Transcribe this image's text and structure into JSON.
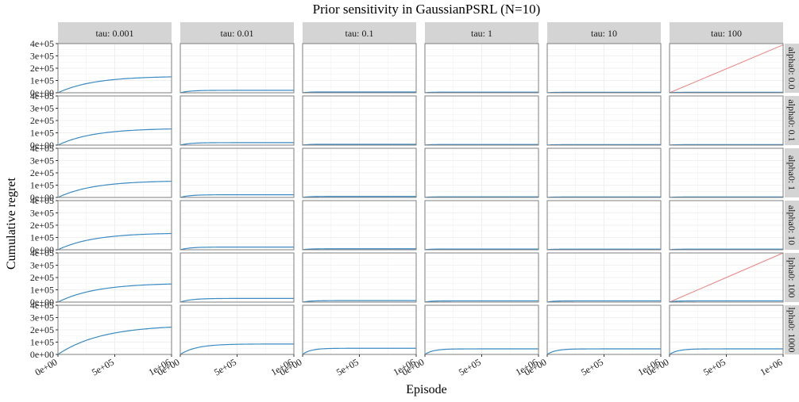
{
  "chart_data": {
    "type": "line",
    "title": "Prior sensitivity in GaussianPSRL (N=10)",
    "xlabel": "Episode",
    "ylabel": "Cumulative regret",
    "xlim": [
      0,
      1000000
    ],
    "ylim": [
      0,
      400000
    ],
    "x_ticks": [
      0,
      500000,
      1000000
    ],
    "x_tick_labels": [
      "0e+00",
      "5e+05",
      "1e+06"
    ],
    "y_ticks": [
      0,
      100000,
      200000,
      300000,
      400000
    ],
    "y_tick_labels": [
      "0e+00",
      "1e+05",
      "2e+05",
      "3e+05",
      "4e+05"
    ],
    "grid": true,
    "col_facets": [
      "tau: 0.001",
      "tau: 0.01",
      "tau: 0.1",
      "tau: 1",
      "tau: 10",
      "tau: 100"
    ],
    "row_facets": [
      "alpha0: 0.0",
      "alpha0: 0.1",
      "alpha0: 1",
      "alpha0: 10",
      "alpha0: 100",
      "alpha0: 1000"
    ],
    "row_facet_labels_visible": [
      "alpha0: 0.0",
      "alpha0: 0.1",
      "alpha0: 1",
      "alpha0: 10",
      "lpha0: 100",
      "lpha0: 1000"
    ],
    "colors": {
      "main": "#3b8bc2",
      "linear": "#f08080",
      "strip": "#d4d4d4",
      "panel_border": "#7f7f7f",
      "grid": "#ebebeb"
    },
    "panels": [
      [
        {
          "plateau": 135000,
          "k": 3.2,
          "extra": null
        },
        {
          "plateau": 20000,
          "k": 12,
          "extra": null
        },
        {
          "plateau": 7000,
          "k": 20,
          "extra": null
        },
        {
          "plateau": 5000,
          "k": 25,
          "extra": null
        },
        {
          "plateau": 4000,
          "k": 25,
          "extra": null
        },
        {
          "plateau": 4000,
          "k": 25,
          "extra": {
            "type": "linear",
            "x": [
              0,
              1000000
            ],
            "y": [
              0,
              390000
            ]
          }
        }
      ],
      [
        {
          "plateau": 137000,
          "k": 3.2,
          "extra": null
        },
        {
          "plateau": 20000,
          "k": 12,
          "extra": null
        },
        {
          "plateau": 7000,
          "k": 20,
          "extra": null
        },
        {
          "plateau": 5000,
          "k": 25,
          "extra": null
        },
        {
          "plateau": 4000,
          "k": 25,
          "extra": null
        },
        {
          "plateau": 4000,
          "k": 25,
          "extra": null
        }
      ],
      [
        {
          "plateau": 137000,
          "k": 3.2,
          "extra": null
        },
        {
          "plateau": 22000,
          "k": 12,
          "extra": null
        },
        {
          "plateau": 8000,
          "k": 20,
          "extra": null
        },
        {
          "plateau": 5000,
          "k": 25,
          "extra": null
        },
        {
          "plateau": 4000,
          "k": 25,
          "extra": null
        },
        {
          "plateau": 4000,
          "k": 25,
          "extra": null
        }
      ],
      [
        {
          "plateau": 138000,
          "k": 3.2,
          "extra": null
        },
        {
          "plateau": 22000,
          "k": 12,
          "extra": null
        },
        {
          "plateau": 8000,
          "k": 20,
          "extra": null
        },
        {
          "plateau": 6000,
          "k": 25,
          "extra": null
        },
        {
          "plateau": 5000,
          "k": 25,
          "extra": null
        },
        {
          "plateau": 5000,
          "k": 25,
          "extra": null
        }
      ],
      [
        {
          "plateau": 155000,
          "k": 3.0,
          "extra": null
        },
        {
          "plateau": 30000,
          "k": 10,
          "extra": null
        },
        {
          "plateau": 12000,
          "k": 15,
          "extra": null
        },
        {
          "plateau": 10000,
          "k": 20,
          "extra": null
        },
        {
          "plateau": 10000,
          "k": 20,
          "extra": null
        },
        {
          "plateau": 10000,
          "k": 20,
          "extra": {
            "type": "linear",
            "x": [
              0,
              1000000
            ],
            "y": [
              0,
              400000
            ]
          }
        }
      ],
      [
        {
          "plateau": 240000,
          "k": 2.6,
          "extra": null
        },
        {
          "plateau": 85000,
          "k": 7,
          "extra": null
        },
        {
          "plateau": 50000,
          "k": 14,
          "extra": null
        },
        {
          "plateau": 45000,
          "k": 14,
          "extra": null
        },
        {
          "plateau": 45000,
          "k": 14,
          "extra": null
        },
        {
          "plateau": 45000,
          "k": 14,
          "extra": null
        }
      ]
    ]
  }
}
